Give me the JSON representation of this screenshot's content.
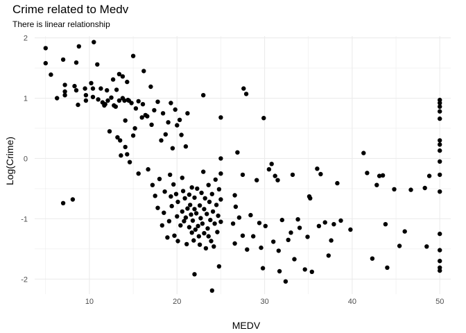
{
  "chart_data": {
    "type": "scatter",
    "title": "Crime related to Medv",
    "subtitle": "There is linear relationship",
    "xlabel": "MEDV",
    "ylabel": "Log(Crime)",
    "xlim": [
      3.75,
      51.25
    ],
    "ylim": [
      -2.25,
      2.03
    ],
    "xticks": [
      10,
      20,
      30,
      40,
      50
    ],
    "yticks": [
      -2,
      -1,
      0,
      1,
      2
    ],
    "grid": true,
    "legend": "none",
    "point_color": "#000000",
    "points": [
      [
        5.0,
        1.83
      ],
      [
        5.0,
        1.58
      ],
      [
        5.6,
        1.39
      ],
      [
        6.3,
        1.0
      ],
      [
        7.0,
        1.64
      ],
      [
        7.0,
        -0.74
      ],
      [
        7.2,
        1.22
      ],
      [
        7.2,
        1.11
      ],
      [
        7.2,
        1.05
      ],
      [
        8.1,
        -0.68
      ],
      [
        8.3,
        1.2
      ],
      [
        8.5,
        1.59
      ],
      [
        8.5,
        1.13
      ],
      [
        8.7,
        0.89
      ],
      [
        8.8,
        1.86
      ],
      [
        9.5,
        1.16
      ],
      [
        9.6,
        1.05
      ],
      [
        9.6,
        0.96
      ],
      [
        10.2,
        1.25
      ],
      [
        10.4,
        1.16
      ],
      [
        10.4,
        1.02
      ],
      [
        10.5,
        1.93
      ],
      [
        10.9,
        1.56
      ],
      [
        11.0,
        0.98
      ],
      [
        11.3,
        1.16
      ],
      [
        11.5,
        0.93
      ],
      [
        11.7,
        0.88
      ],
      [
        11.8,
        0.9
      ],
      [
        12.0,
        1.13
      ],
      [
        12.1,
        0.96
      ],
      [
        12.3,
        0.45
      ],
      [
        12.5,
        1.01
      ],
      [
        12.7,
        1.31
      ],
      [
        12.8,
        0.88
      ],
      [
        13.0,
        0.86
      ],
      [
        13.1,
        1.14
      ],
      [
        13.2,
        0.35
      ],
      [
        13.4,
        1.4
      ],
      [
        13.4,
        0.96
      ],
      [
        13.5,
        0.3
      ],
      [
        13.6,
        0.05
      ],
      [
        13.8,
        1.36
      ],
      [
        13.8,
        1.0
      ],
      [
        14.0,
        0.96
      ],
      [
        14.1,
        0.63
      ],
      [
        14.1,
        0.19
      ],
      [
        14.3,
        1.27
      ],
      [
        14.3,
        0.07
      ],
      [
        14.4,
        0.97
      ],
      [
        14.5,
        0.96
      ],
      [
        14.6,
        -0.06
      ],
      [
        14.8,
        0.92
      ],
      [
        15.0,
        1.7
      ],
      [
        15.0,
        0.38
      ],
      [
        15.2,
        0.5
      ],
      [
        15.3,
        0.83
      ],
      [
        15.6,
        0.95
      ],
      [
        15.6,
        -0.25
      ],
      [
        16.0,
        0.68
      ],
      [
        16.1,
        0.9
      ],
      [
        16.2,
        1.45
      ],
      [
        16.4,
        0.72
      ],
      [
        16.6,
        0.7
      ],
      [
        16.7,
        -0.18
      ],
      [
        17.0,
        1.19
      ],
      [
        17.1,
        0.56
      ],
      [
        17.2,
        -0.44
      ],
      [
        17.4,
        0.8
      ],
      [
        17.5,
        -0.62
      ],
      [
        17.8,
        0.94
      ],
      [
        17.8,
        -0.82
      ],
      [
        18.0,
        -0.34
      ],
      [
        18.2,
        0.3
      ],
      [
        18.3,
        -1.11
      ],
      [
        18.4,
        0.75
      ],
      [
        18.5,
        -0.9
      ],
      [
        18.6,
        -0.55
      ],
      [
        18.7,
        0.4
      ],
      [
        18.9,
        -1.31
      ],
      [
        19.0,
        0.6
      ],
      [
        19.1,
        -1.04
      ],
      [
        19.2,
        -0.27
      ],
      [
        19.3,
        0.92
      ],
      [
        19.3,
        -0.63
      ],
      [
        19.4,
        -0.79
      ],
      [
        19.5,
        0.17
      ],
      [
        19.6,
        -0.43
      ],
      [
        19.7,
        -1.28
      ],
      [
        19.8,
        0.81
      ],
      [
        19.9,
        -0.59
      ],
      [
        20.0,
        0.55
      ],
      [
        20.0,
        -0.96
      ],
      [
        20.1,
        -0.72
      ],
      [
        20.1,
        -1.37
      ],
      [
        20.3,
        0.64
      ],
      [
        20.4,
        -1.11
      ],
      [
        20.5,
        0.39
      ],
      [
        20.6,
        -0.88
      ],
      [
        20.6,
        -0.32
      ],
      [
        20.7,
        -0.54
      ],
      [
        20.8,
        -1.04
      ],
      [
        20.9,
        -0.66
      ],
      [
        21.0,
        0.2
      ],
      [
        21.0,
        -0.98
      ],
      [
        21.1,
        -1.42
      ],
      [
        21.2,
        -0.83
      ],
      [
        21.2,
        0.75
      ],
      [
        21.4,
        -0.6
      ],
      [
        21.4,
        -1.14
      ],
      [
        21.5,
        -0.77
      ],
      [
        21.6,
        -0.93
      ],
      [
        21.7,
        -1.23
      ],
      [
        21.7,
        -0.48
      ],
      [
        21.8,
        -1.03
      ],
      [
        21.9,
        -1.36
      ],
      [
        22.0,
        -0.84
      ],
      [
        22.0,
        -0.65
      ],
      [
        22.0,
        -1.92
      ],
      [
        22.1,
        -1.18
      ],
      [
        22.2,
        -0.91
      ],
      [
        22.3,
        -0.5
      ],
      [
        22.4,
        -1.12
      ],
      [
        22.5,
        -1.29
      ],
      [
        22.6,
        -0.78
      ],
      [
        22.6,
        -1.43
      ],
      [
        22.7,
        -0.99
      ],
      [
        22.8,
        -0.57
      ],
      [
        22.9,
        -1.08
      ],
      [
        23.0,
        1.05
      ],
      [
        23.0,
        -0.22
      ],
      [
        23.1,
        -1.24
      ],
      [
        23.1,
        -0.84
      ],
      [
        23.2,
        -0.66
      ],
      [
        23.3,
        -1.49
      ],
      [
        23.4,
        -0.92
      ],
      [
        23.5,
        -1.16
      ],
      [
        23.6,
        -0.44
      ],
      [
        23.6,
        -1.29
      ],
      [
        23.7,
        -0.72
      ],
      [
        23.8,
        -1.02
      ],
      [
        23.9,
        -1.37
      ],
      [
        24.0,
        -0.59
      ],
      [
        24.0,
        -2.19
      ],
      [
        24.1,
        -0.88
      ],
      [
        24.2,
        -1.46
      ],
      [
        24.3,
        -1.08
      ],
      [
        24.4,
        -0.35
      ],
      [
        24.5,
        -0.77
      ],
      [
        24.6,
        -1.22
      ],
      [
        24.7,
        -0.95
      ],
      [
        24.8,
        -0.51
      ],
      [
        24.8,
        -1.79
      ],
      [
        25.0,
        0.0
      ],
      [
        25.0,
        -0.68
      ],
      [
        25.0,
        -1.05
      ],
      [
        25.0,
        -0.25
      ],
      [
        25.0,
        0.68
      ],
      [
        26.4,
        -1.08
      ],
      [
        26.6,
        -0.61
      ],
      [
        26.6,
        -1.41
      ],
      [
        26.7,
        -0.8
      ],
      [
        26.9,
        0.1
      ],
      [
        27.1,
        -0.98
      ],
      [
        27.5,
        -0.27
      ],
      [
        27.5,
        -1.28
      ],
      [
        27.6,
        1.16
      ],
      [
        27.9,
        1.07
      ],
      [
        28.0,
        -1.51
      ],
      [
        28.4,
        -0.94
      ],
      [
        28.7,
        -1.29
      ],
      [
        29.1,
        -0.36
      ],
      [
        29.4,
        -1.07
      ],
      [
        29.6,
        -1.48
      ],
      [
        29.8,
        -1.82
      ],
      [
        29.9,
        0.67
      ],
      [
        30.1,
        -1.12
      ],
      [
        30.5,
        -0.18
      ],
      [
        30.8,
        -0.09
      ],
      [
        31.0,
        -1.38
      ],
      [
        31.2,
        -0.29
      ],
      [
        31.5,
        -0.36
      ],
      [
        31.6,
        -1.53
      ],
      [
        31.7,
        -1.87
      ],
      [
        32.0,
        -1.02
      ],
      [
        32.4,
        -2.04
      ],
      [
        32.7,
        -1.35
      ],
      [
        33.0,
        -1.23
      ],
      [
        33.2,
        -0.27
      ],
      [
        33.4,
        -1.67
      ],
      [
        33.8,
        -1.01
      ],
      [
        34.0,
        -1.15
      ],
      [
        34.6,
        -1.84
      ],
      [
        34.9,
        -1.3
      ],
      [
        35.1,
        -0.63
      ],
      [
        35.2,
        -0.66
      ],
      [
        35.4,
        -1.88
      ],
      [
        36.0,
        -0.17
      ],
      [
        36.2,
        -1.12
      ],
      [
        36.4,
        -0.26
      ],
      [
        36.9,
        -1.06
      ],
      [
        37.3,
        -1.61
      ],
      [
        37.6,
        -1.36
      ],
      [
        37.9,
        -1.09
      ],
      [
        38.3,
        -0.41
      ],
      [
        38.7,
        -1.03
      ],
      [
        39.8,
        -1.18
      ],
      [
        41.3,
        0.09
      ],
      [
        41.7,
        -0.24
      ],
      [
        42.3,
        -1.66
      ],
      [
        42.8,
        -0.44
      ],
      [
        43.1,
        -0.29
      ],
      [
        43.5,
        -0.28
      ],
      [
        43.8,
        -1.09
      ],
      [
        44.0,
        -1.81
      ],
      [
        44.8,
        -0.51
      ],
      [
        45.4,
        -1.45
      ],
      [
        46.0,
        -1.21
      ],
      [
        46.7,
        -0.52
      ],
      [
        48.3,
        -0.49
      ],
      [
        48.5,
        -1.46
      ],
      [
        48.8,
        -0.29
      ],
      [
        50.0,
        0.97
      ],
      [
        50.0,
        0.92
      ],
      [
        50.0,
        0.86
      ],
      [
        50.0,
        0.78
      ],
      [
        50.0,
        0.66
      ],
      [
        50.0,
        0.3
      ],
      [
        50.0,
        0.23
      ],
      [
        50.0,
        0.13
      ],
      [
        50.0,
        -0.05
      ],
      [
        50.0,
        -0.27
      ],
      [
        50.0,
        -0.55
      ],
      [
        50.0,
        -1.25
      ],
      [
        50.0,
        -1.52
      ],
      [
        50.0,
        -1.7
      ],
      [
        50.0,
        -1.81
      ],
      [
        50.0,
        -1.86
      ]
    ]
  }
}
